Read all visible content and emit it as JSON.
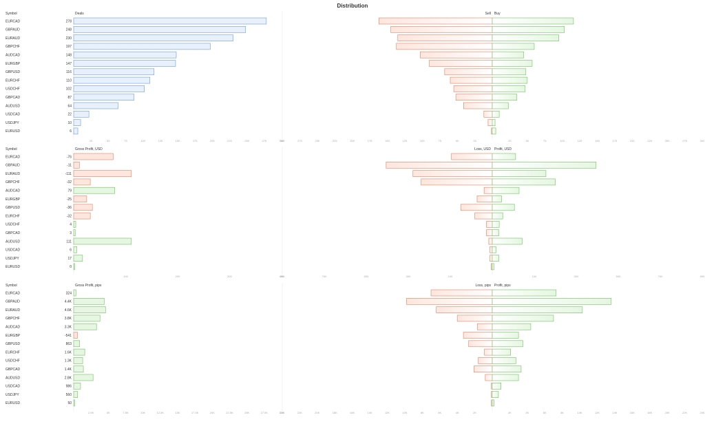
{
  "page": {
    "title": "Distribution"
  },
  "colors": {
    "blue_fill": "#e8f1fb",
    "blue_stroke": "#6c9bd2",
    "red_fill": "#fde6de",
    "red_stroke": "#e0805f",
    "green_fill": "#e6f6e2",
    "green_stroke": "#6fbf5f",
    "grid": "#e6e6e6",
    "axis_text": "#aaaaaa",
    "label_text": "#333333"
  },
  "chart_data": [
    {
      "type": "bar",
      "orientation": "horizontal",
      "symbol_header": "Symbol",
      "value_header": "Deals",
      "categories": [
        "EURCAD",
        "GBPAUD",
        "EURAUD",
        "GBPCHF",
        "AUDCAD",
        "EURGBP",
        "GBPUSD",
        "EURCHF",
        "USDCHF",
        "GBPCAD",
        "AUDUSD",
        "USDCAD",
        "USDJPY",
        "EURUSD"
      ],
      "values": [
        278,
        248,
        230,
        197,
        148,
        147,
        116,
        110,
        102,
        87,
        64,
        22,
        10,
        6
      ],
      "value_labels": [
        "278",
        "248",
        "230",
        "197",
        "148",
        "147",
        "116",
        "110",
        "102",
        "87",
        "64",
        "22",
        "10",
        "6"
      ],
      "xlim": [
        0,
        300
      ],
      "ticks": [
        "25",
        "50",
        "75",
        "100",
        "125",
        "150",
        "175",
        "200",
        "225",
        "250",
        "275",
        "300"
      ]
    },
    {
      "type": "bar",
      "orientation": "horizontal-diverging",
      "left_header": "Sell",
      "right_header": "Buy",
      "categories": [
        "EURCAD",
        "GBPAUD",
        "EURAUD",
        "GBPCHF",
        "AUDCAD",
        "EURGBP",
        "GBPUSD",
        "EURCHF",
        "USDCHF",
        "GBPCAD",
        "AUDUSD",
        "USDCAD",
        "USDJPY",
        "EURUSD"
      ],
      "series": [
        {
          "name": "Sell",
          "values": [
            162,
            145,
            135,
            137,
            103,
            90,
            68,
            60,
            55,
            52,
            41,
            12,
            6,
            1
          ]
        },
        {
          "name": "Buy",
          "values": [
            116,
            103,
            95,
            60,
            45,
            57,
            48,
            50,
            47,
            35,
            23,
            10,
            4,
            5
          ]
        }
      ],
      "xlim": [
        -300,
        300
      ],
      "ticks_left": [
        "300",
        "275",
        "250",
        "225",
        "200",
        "175",
        "150",
        "125",
        "100",
        "75",
        "50",
        "25"
      ],
      "ticks_right": [
        "25",
        "50",
        "75",
        "100",
        "125",
        "150",
        "175",
        "200",
        "225",
        "250",
        "275",
        "300"
      ]
    },
    {
      "type": "bar",
      "orientation": "horizontal",
      "symbol_header": "Symbol",
      "value_header": "Gross Profit, USD",
      "categories": [
        "EURCAD",
        "GBPAUD",
        "EURAUD",
        "GBPCHF",
        "AUDCAD",
        "EURGBP",
        "GBPUSD",
        "EURCHF",
        "USDCHF",
        "GBPCAD",
        "AUDUSD",
        "USDCAD",
        "USDJPY",
        "EURUSD"
      ],
      "values": [
        -76,
        -11,
        -111,
        -32,
        79,
        -25,
        -36,
        -32,
        4,
        3,
        111,
        6,
        17,
        0
      ],
      "value_labels": [
        "-76",
        "-11",
        "-111",
        "-32",
        "79",
        "-25",
        "-36",
        "-32",
        "4",
        "3",
        "111",
        "6",
        "17",
        "0"
      ],
      "xlim": [
        0,
        400
      ],
      "ticks": [
        "100",
        "200",
        "300",
        "400"
      ]
    },
    {
      "type": "bar",
      "orientation": "horizontal-diverging",
      "left_header": "Loss, USD",
      "right_header": "Profit, USD",
      "categories": [
        "EURCAD",
        "GBPAUD",
        "EURAUD",
        "GBPCHF",
        "AUDCAD",
        "EURGBP",
        "GBPUSD",
        "EURCHF",
        "USDCHF",
        "GBPCAD",
        "AUDUSD",
        "USDCAD",
        "USDJPY",
        "EURUSD"
      ],
      "series": [
        {
          "name": "Loss",
          "values": [
            175,
            455,
            340,
            305,
            35,
            65,
            135,
            75,
            25,
            25,
            15,
            10,
            10,
            5
          ]
        },
        {
          "name": "Profit",
          "values": [
            100,
            445,
            230,
            270,
            115,
            40,
            95,
            45,
            30,
            28,
            128,
            16,
            28,
            7
          ]
        }
      ],
      "xlim": [
        -900,
        900
      ],
      "ticks_left": [
        "900",
        "700",
        "500",
        "300",
        "100"
      ],
      "ticks_right": [
        "100",
        "300",
        "500",
        "700",
        "900"
      ]
    },
    {
      "type": "bar",
      "orientation": "horizontal",
      "symbol_header": "Symbol",
      "value_header": "Gross Profit, pips",
      "categories": [
        "EURCAD",
        "GBPAUD",
        "EURAUD",
        "GBPCHF",
        "AUDCAD",
        "EURGBP",
        "GBPUSD",
        "EURCHF",
        "USDCHF",
        "GBPCAD",
        "AUDUSD",
        "USDCAD",
        "USDJPY",
        "EURUSD"
      ],
      "values": [
        324,
        4400,
        4600,
        3800,
        3300,
        -541,
        863,
        1600,
        1300,
        1400,
        2800,
        986,
        560,
        50
      ],
      "value_labels": [
        "324",
        "4.4K",
        "4.6K",
        "3.8K",
        "3.3K",
        "-541",
        "863",
        "1.6K",
        "1.3K",
        "1.4K",
        "2.8K",
        "986",
        "560",
        "50"
      ],
      "xlim": [
        0,
        30000
      ],
      "ticks": [
        "2.5K",
        "5K",
        "7.5K",
        "10K",
        "12.5K",
        "15K",
        "17.5K",
        "20K",
        "22.5K",
        "25K",
        "27.5K",
        "30K"
      ]
    },
    {
      "type": "bar",
      "orientation": "horizontal-diverging",
      "left_header": "Loss, pips",
      "right_header": "Profit, pips",
      "categories": [
        "EURCAD",
        "GBPAUD",
        "EURAUD",
        "GBPCHF",
        "AUDCAD",
        "EURGBP",
        "GBPUSD",
        "EURCHF",
        "USDCHF",
        "GBPCAD",
        "AUDUSD",
        "USDCAD",
        "USDJPY",
        "EURUSD"
      ],
      "series": [
        {
          "name": "Loss",
          "values": [
            7000,
            9800,
            6400,
            4000,
            1700,
            3300,
            2700,
            900,
            1600,
            2100,
            800,
            100,
            100,
            100
          ]
        },
        {
          "name": "Profit",
          "values": [
            7300,
            13600,
            10300,
            7000,
            4400,
            3000,
            3500,
            2100,
            2700,
            3300,
            3000,
            1000,
            700,
            200
          ]
        }
      ],
      "xlim": [
        -24000,
        24000
      ],
      "ticks_left": [
        "24K",
        "22K",
        "20K",
        "18K",
        "16K",
        "14K",
        "12K",
        "10K",
        "8K",
        "6K",
        "4K",
        "2K"
      ],
      "ticks_right": [
        "2K",
        "4K",
        "6K",
        "8K",
        "10K",
        "12K",
        "14K",
        "16K",
        "18K",
        "20K",
        "22K",
        "24K"
      ]
    }
  ]
}
